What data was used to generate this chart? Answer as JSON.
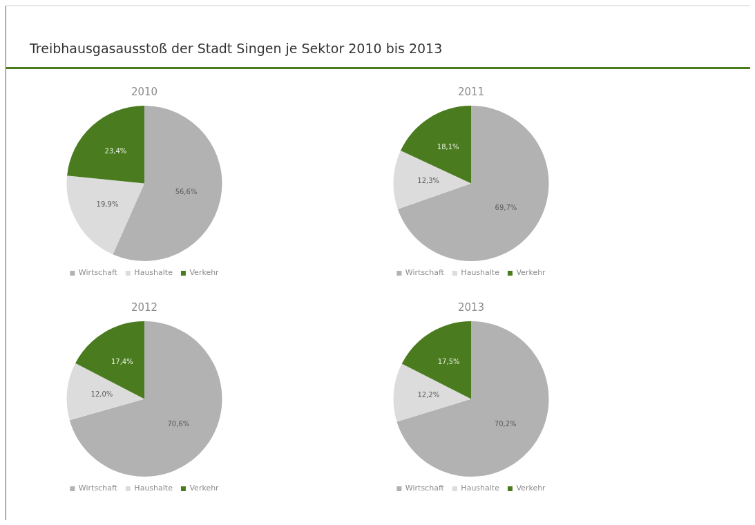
{
  "chart_data": [
    {
      "type": "pie",
      "title": "2010",
      "annotations": [
        "Treibhausgasausstoß der Stadt Singen je Sektor 2010 bis 2013"
      ],
      "categories": [
        "Wirtschaft",
        "Haushalte",
        "Verkehr"
      ],
      "values": [
        56.6,
        19.9,
        23.4
      ],
      "value_labels": [
        "56,6%",
        "19,9%",
        "23,4%"
      ],
      "colors": [
        "#b2b2b2",
        "#dcdcdc",
        "#4a7c1f"
      ],
      "legend": "bottom"
    },
    {
      "type": "pie",
      "title": "2011",
      "categories": [
        "Wirtschaft",
        "Haushalte",
        "Verkehr"
      ],
      "values": [
        69.7,
        12.3,
        18.1
      ],
      "value_labels": [
        "69,7%",
        "12,3%",
        "18,1%"
      ],
      "colors": [
        "#b2b2b2",
        "#dcdcdc",
        "#4a7c1f"
      ],
      "legend": "bottom"
    },
    {
      "type": "pie",
      "title": "2012",
      "categories": [
        "Wirtschaft",
        "Haushalte",
        "Verkehr"
      ],
      "values": [
        70.6,
        12.0,
        17.4
      ],
      "value_labels": [
        "70,6%",
        "12,0%",
        "17,4%"
      ],
      "colors": [
        "#b2b2b2",
        "#dcdcdc",
        "#4a7c1f"
      ],
      "legend": "bottom"
    },
    {
      "type": "pie",
      "title": "2013",
      "categories": [
        "Wirtschaft",
        "Haushalte",
        "Verkehr"
      ],
      "values": [
        70.2,
        12.2,
        17.5
      ],
      "value_labels": [
        "70,2%",
        "12,2%",
        "17,5%"
      ],
      "colors": [
        "#b2b2b2",
        "#dcdcdc",
        "#4a7c1f"
      ],
      "legend": "bottom"
    }
  ]
}
